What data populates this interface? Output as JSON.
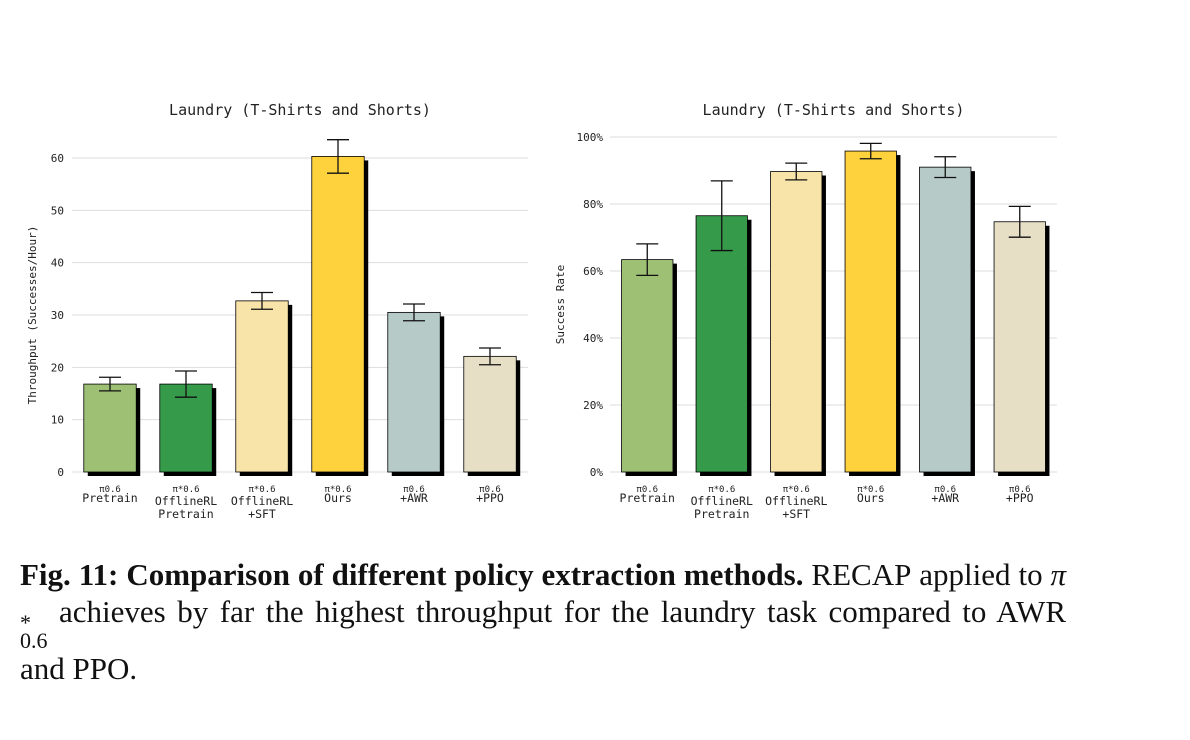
{
  "chart_data": [
    {
      "type": "bar",
      "title": "Laundry (T-Shirts and Shorts)",
      "ylabel": "Throughput (Successes/Hour)",
      "categories": [
        [
          "π0.6",
          "Pretrain"
        ],
        [
          "π*0.6",
          "OfflineRL",
          "Pretrain"
        ],
        [
          "π*0.6",
          "OfflineRL",
          "+SFT"
        ],
        [
          "π*0.6",
          "Ours"
        ],
        [
          "π0.6",
          "+AWR"
        ],
        [
          "π0.6",
          "+PPO"
        ]
      ],
      "values": [
        16.8,
        16.8,
        32.7,
        60.3,
        30.5,
        22.1
      ],
      "errors": [
        1.3,
        2.5,
        1.6,
        3.2,
        1.6,
        1.6
      ],
      "colors": [
        "#9dc074",
        "#359a4a",
        "#f8e3a8",
        "#fdd23c",
        "#b6cac8",
        "#e6dfc5"
      ],
      "ylim": [
        0,
        65
      ],
      "yticks": [
        0,
        10,
        20,
        30,
        40,
        50,
        60
      ],
      "grid": true
    },
    {
      "type": "bar",
      "title": "Laundry (T-Shirts and Shorts)",
      "ylabel": "Success Rate",
      "categories": [
        [
          "π0.6",
          "Pretrain"
        ],
        [
          "π*0.6",
          "OfflineRL",
          "Pretrain"
        ],
        [
          "π*0.6",
          "OfflineRL",
          "+SFT"
        ],
        [
          "π*0.6",
          "Ours"
        ],
        [
          "π0.6",
          "+AWR"
        ],
        [
          "π0.6",
          "+PPO"
        ]
      ],
      "values": [
        63.4,
        76.5,
        89.7,
        95.8,
        91.0,
        74.7
      ],
      "errors": [
        4.7,
        10.4,
        2.5,
        2.3,
        3.1,
        4.6
      ],
      "colors": [
        "#9dc074",
        "#359a4a",
        "#f8e3a8",
        "#fdd23c",
        "#b6cac8",
        "#e6dfc5"
      ],
      "ylim": [
        0,
        100
      ],
      "yticks": [
        {
          "value": 0,
          "label": "0%"
        },
        {
          "value": 20,
          "label": "20%"
        },
        {
          "value": 40,
          "label": "40%"
        },
        {
          "value": 60,
          "label": "60%"
        },
        {
          "value": 80,
          "label": "80%"
        },
        {
          "value": 100,
          "label": "100%"
        }
      ],
      "grid": true
    }
  ],
  "caption": {
    "label": "Fig. 11:",
    "heading": "Comparison of different policy extraction methods.",
    "method": "RECAP",
    "text1": "applied to",
    "symbol": "π",
    "sup": "*",
    "sub": "0.6",
    "text2": "achieves by far the highest throughput for the laundry task compared to AWR and PPO."
  }
}
